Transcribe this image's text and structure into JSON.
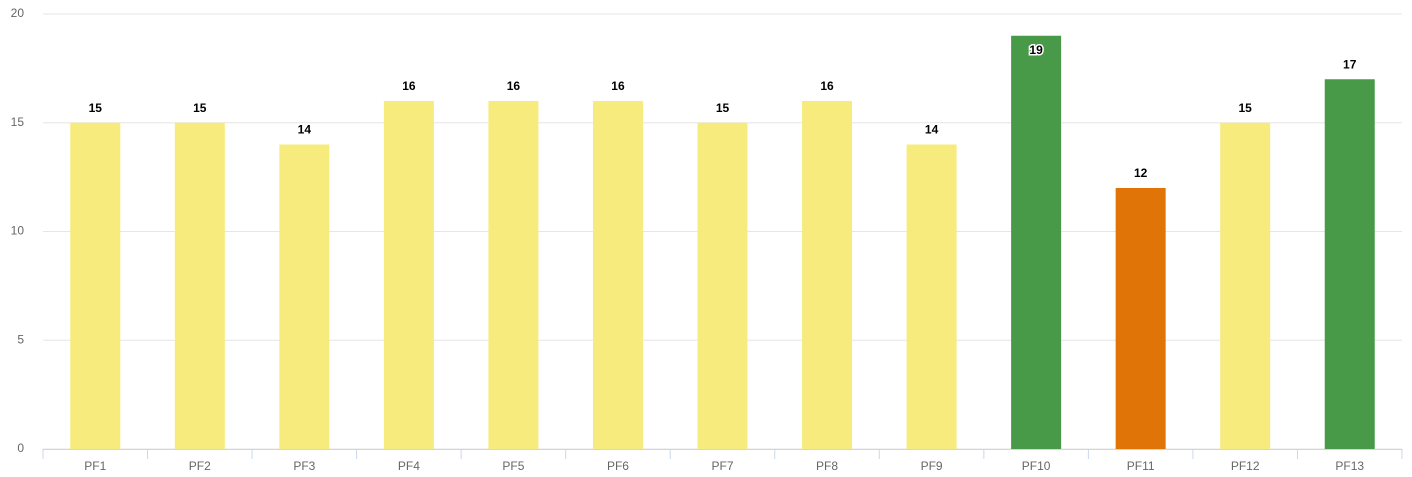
{
  "chart_data": {
    "type": "bar",
    "categories": [
      "PF1",
      "PF2",
      "PF3",
      "PF4",
      "PF5",
      "PF6",
      "PF7",
      "PF8",
      "PF9",
      "PF10",
      "PF11",
      "PF12",
      "PF13"
    ],
    "values": [
      15,
      15,
      14,
      16,
      16,
      16,
      15,
      16,
      14,
      19,
      12,
      15,
      17
    ],
    "colors": [
      "#f7eb7e",
      "#f7eb7e",
      "#f7eb7e",
      "#f7eb7e",
      "#f7eb7e",
      "#f7eb7e",
      "#f7eb7e",
      "#f7eb7e",
      "#f7eb7e",
      "#489a48",
      "#e07406",
      "#f7eb7e",
      "#489a48"
    ],
    "ylim": [
      0,
      20
    ],
    "yticks": [
      0,
      5,
      10,
      15,
      20
    ],
    "grid": true
  }
}
